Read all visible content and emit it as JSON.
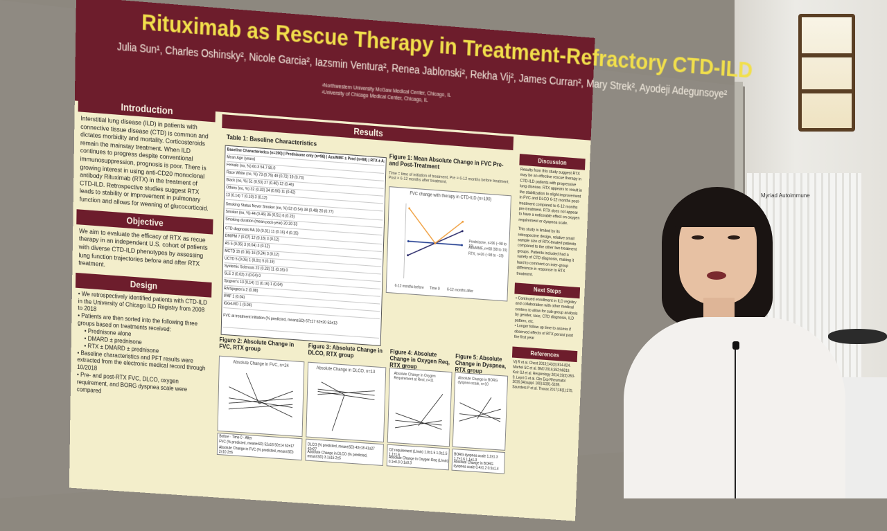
{
  "poster": {
    "title": "Rituximab as Rescue Therapy in Treatment-Refractory CTD-ILD",
    "authors": "Julia Sun¹, Charles Oshinsky², Nicole Garcia², Iazsmin Ventura², Renea Jablonski², Rekha Vij², James Curran², Mary Strek², Ayodeji Adegunsoye²",
    "affiliation_1": "¹Northwestern University McGaw Medical Center, Chicago, IL",
    "affiliation_2": "²University of Chicago Medical Center, Chicago, IL",
    "introduction": {
      "heading": "Introduction",
      "text": "Interstitial lung disease (ILD) in patients with connective tissue disease (CTD) is common and dictates morbidity and mortality. Corticosteroids remain the mainstay treatment. When ILD continues to progress despite conventional immunosuppression, prognosis is poor. There is growing interest in using anti-CD20 monoclonal antibody Rituximab (RTX) in the treatment of CTD-ILD. Retrospective studies suggest RTX leads to stability or improvement in pulmonary function and allows for weaning of glucocorticoid."
    },
    "objective": {
      "heading": "Objective",
      "text": "We aim to evaluate the efficacy of RTX as recue therapy in an independent U.S. cohort of patients with diverse CTD-ILD phenotypes by assessing lung function trajectories before and after RTX treatment."
    },
    "design": {
      "heading": "Design",
      "bullet_1": "We retrospectively identified patients with CTD-ILD in the University of Chicago ILD Registry from 2008 to 2018",
      "bullet_2": "Patients are then sorted into the following three groups based on treatments received:",
      "sub_1": "Prednisone alone",
      "sub_2": "DMARD ± prednisone",
      "sub_3": "RTX ± DMARD ± prednisone",
      "bullet_3": "Baseline characteristics and PFT results were extracted from the electronic medical record through 10/2018",
      "bullet_4": "Pre- and post-RTX FVC, DLCO, oxygen requirement, and BORG dyspnea scale were compared"
    },
    "results_heading": "Results",
    "table1": {
      "caption": "Table 1: Baseline Characteristics",
      "header": "Baseline Characteristics (n=190)",
      "col_1": "Prednisone only (n=96)",
      "col_2": "Aza/MMF ± Pred (n=68)",
      "col_3": "RTX ± Aza/MMF ± Pred (n=26)",
      "rows": [
        "Mean Age (years)",
        "Female (no, %)    60.3    54.7    55.0",
        "Race    White (no, %)    73 (0.76)    49 (0.72)    19 (0.73)",
        "Black (no, %)    51 (0.53)    27 (0.40)    12 (0.46)",
        "Others (no, %)    32 (0.33)    34 (0.50)    11 (0.42)",
        "13 (0.14)    7 (0.10)    3 (0.12)",
        "Smoking Status    Never Smoker (no, %)    52 (0.54)    33 (0.49)    20 (0.77)",
        "Smoker (no, %)    44 (0.46)    35 (0.51)    6 (0.23)",
        "Smoking duration (mean pack-year)    20    20    33",
        "CTD diagnosis    RA    30 (0.31)    11 (0.16)    4 (0.15)",
        "DM/PM    7 (0.07)    12 (0.18)    3 (0.12)",
        "AS    5 (0.05)    3 (0.04)    3 (0.12)",
        "MCTD    15 (0.16)    16 (0.24)    3 (0.12)",
        "UCTD    5 (0.05)    1 (0.01)    5 (0.19)",
        "Systemic Sclerosis    22 (0.23)    11 (0.16)    0",
        "SLE    3 (0.03)    3 (0.04)    0",
        "Sjogren's    13 (0.14)    11 (0.16)    1 (0.04)",
        "RA/Sjogren's    2 (0.08)",
        "IPAF    1 (0.04)",
        "IGG4-RD    1 (0.04)",
        "FVC at treatment initiation (% predicted, mean±SD)    67±17    62±20    52±13"
      ]
    },
    "figure1": {
      "caption": "Figure 1: Mean Absolute Change in FVC Pre- and Post-Treatment",
      "note": "Time = time of initiation of treatment. Pre = 6-12 months before treatment. Post = 6-12 months after treatment.",
      "chart_title": "FVC change with therapy in CTD-ILD (n=190)",
      "legend_1": "Prednisone, n=96 (−98 to 19)",
      "legend_2": "Aza/MMF, n=68 (98 to 19)",
      "legend_3": "RTX, n=26 (−98 to −19)",
      "x_1": "6-12 months before",
      "x_2": "Time 0",
      "x_3": "6-12 months after"
    },
    "figure2": {
      "caption": "Figure 2: Absolute Change in FVC, RTX group",
      "chart_title": "Absolute Change in FVC, n=24",
      "row_1": "FVC (% predicted, mean±SD)",
      "row_2": "Absolute Change in FVC (% predicted, mean±SD)",
      "h_before": "Before",
      "h_time0": "Time 0",
      "h_after": "After",
      "v_1": "52±16",
      "v_2": "50±14",
      "v_3": "52±17",
      "v_4": "2±10",
      "v_5": "2±6"
    },
    "figure3": {
      "caption": "Figure 3: Absolute Change in DLCO, RTX group",
      "chart_title": "Absolute Change in DLCO, n=13",
      "row_1": "DLCO (% predicted, mean±SD)",
      "row_2": "Absolute Change in DLCO (% predicted, mean±SD)",
      "v_1": "43±18",
      "v_2": "41±27",
      "v_3": "42±27",
      "v_4": "3.1±15",
      "v_5": "2±5"
    },
    "figure4": {
      "caption": "Figure 4: Absolute Change in Oxygen Req, RTX group",
      "chart_title": "Absolute Change in Oxygen Requirement at Rest, n=11",
      "row_1": "O2 requirement (L/min)",
      "row_2": "Absolute Change in Oxygen Req (L/min)",
      "v_1": "1.0±1.5",
      "v_2": "1.0±1.5",
      "v_3": "1.1±1.6",
      "v_4": "0.1±0.3",
      "v_5": "0.1±0.3"
    },
    "figure5": {
      "caption": "Figure 5: Absolute Change in Dyspnea, RTX group",
      "chart_title": "Absolute Change in BORG dyspnea scale, n=10",
      "row_1": "BORG dyspnea scale",
      "row_2": "Absolute Change in BORG dyspnea scale",
      "v_1": "1.2±1.3",
      "v_2": "1.7±1.6",
      "v_3": "1.1±1.3",
      "v_4": "0.4±1.2",
      "v_5": "0.5±1.4"
    },
    "discussion": {
      "heading": "Discussion",
      "text_1": "Results from this study suggest RTX may be an effective rescue therapy in CTD-ILD patients with progressive lung disease. RTX appears to result in the stabilization to slight improvement in FVC and DLCO 6-12 months post-treatment compared to 6-12 months pre-treatment. RTX does not appear to have a noticeable effect on oxygen requirement or dyspnea scale.",
      "text_2": "This study is limited by its retrospective design, relative small sample size of RTX-treated patients compared to the other two treatment groups. Patients included had a variety of CTD diagnosis, making it hard to comment on inter-group difference in response to RTX treatment."
    },
    "next_steps": {
      "heading": "Next Steps",
      "item_1": "Continued enrollment in ILD registry and collaboration with other medical centers to allow for sub-group analysis by gender, race, CTD diagnosis, ILD pattern, etc.",
      "item_2": "Longer follow up time to assess if observed effects of RTX persist past the first year"
    },
    "references": {
      "heading": "References",
      "text": "Vij R et al. Chest 2013;143(3):814-824. Marhel SC et al. BMJ 2016;352:h6819. Keir GJ et al. Respirology 2014;19(3):353-9. Lepri G et al. Clin Exp Rheumatol 2016;34(suppl. 100):S181-S185. Saunders P et al. Thorax 2017;18(1):275."
    }
  },
  "room": {
    "sign_text": "Myriad Autoimmune"
  },
  "chart_data": [
    {
      "type": "line",
      "title": "FVC change with therapy in CTD-ILD (n=190)",
      "categories": [
        "6-12 months before",
        "Time 0",
        "6-12 months after"
      ],
      "series": [
        {
          "name": "Prednisone, n=96 (−98 to 19)",
          "values": [
            0,
            0,
            0
          ]
        },
        {
          "name": "Aza/MMF, n=68 (98 to 19)",
          "values": [
            -3,
            0,
            3
          ]
        },
        {
          "name": "RTX, n=26 (−98 to −19)",
          "values": [
            7,
            0,
            5
          ]
        }
      ],
      "ylim": [
        -8,
        8
      ],
      "colors": [
        "#1f3b8f",
        "#2a2a6a",
        "#f0a040"
      ]
    }
  ]
}
